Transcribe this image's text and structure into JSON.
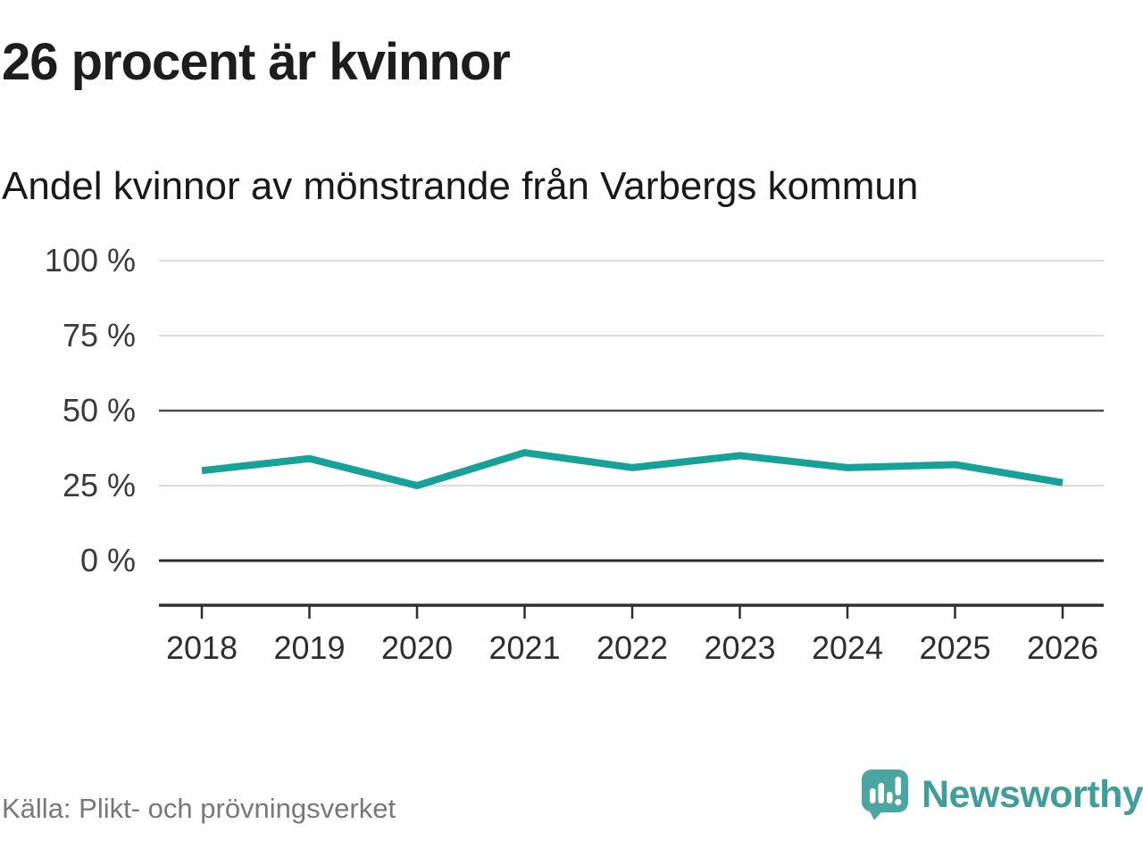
{
  "header": {
    "title": "26 procent är kvinnor",
    "subtitle": "Andel kvinnor av mönstrande från Varbergs kommun"
  },
  "chart_data": {
    "type": "line",
    "title": "26 procent är kvinnor",
    "subtitle": "Andel kvinnor av mönstrande från Varbergs kommun",
    "categories": [
      "2018",
      "2019",
      "2020",
      "2021",
      "2022",
      "2023",
      "2024",
      "2025",
      "2026"
    ],
    "series": [
      {
        "name": "Andel kvinnor av mönstrande från Varbergs kommun",
        "values": [
          30,
          34,
          25,
          36,
          31,
          35,
          31,
          32,
          26
        ]
      }
    ],
    "unit": "%",
    "xlabel": "",
    "ylabel": "",
    "ylim": [
      0,
      100
    ],
    "yticks": [
      0,
      25,
      50,
      75,
      100
    ],
    "ytick_labels": [
      "0 %",
      "25 %",
      "50 %",
      "75 %",
      "100 %"
    ],
    "grid": "horizontal",
    "emphasized_gridlines": [
      0,
      50
    ],
    "legend_position": "none"
  },
  "footer": {
    "source": "Källa: Plikt- och prövningsverket",
    "brand_name": "Newsworthy"
  },
  "icons": {
    "brand_logo": "newsworthy-speech-bubble-bar-chart-icon"
  },
  "colors": {
    "line": "#16a199",
    "light_gridline": "#dcdcdc",
    "dark_gridline": "#4f4f4f",
    "zero_line": "#2f2f2f",
    "axis": "#2f2f2f",
    "ytick_text": "#3a3a3a",
    "xtick_text": "#2e2e2e",
    "title_text": "#1d1d1d",
    "source_text": "#787878",
    "brand_teal": "#3f9e99",
    "brand_icon_teal": "#4ba5a1"
  }
}
